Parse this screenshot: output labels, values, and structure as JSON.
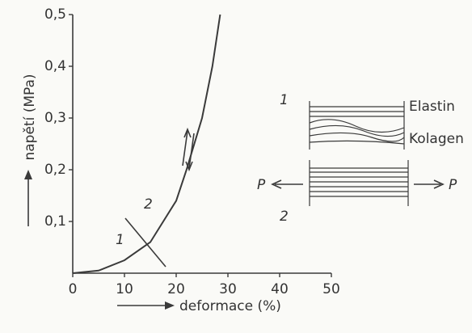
{
  "chart_data": {
    "type": "line",
    "xlabel": "deformace (%)",
    "ylabel": "napětí (MPa)",
    "x": [
      0,
      5,
      10,
      15,
      20,
      22,
      25,
      27,
      28.5
    ],
    "values": [
      0,
      0.005,
      0.025,
      0.06,
      0.14,
      0.2,
      0.3,
      0.4,
      0.5
    ],
    "color": "#3a3a3a",
    "xlim": [
      0,
      50
    ],
    "xticks": [
      0,
      10,
      20,
      30,
      40,
      50
    ],
    "ylim": [
      0,
      0.5
    ],
    "yticks": [
      {
        "value": 0.1,
        "label": "0,1"
      },
      {
        "value": 0.2,
        "label": "0,2"
      },
      {
        "value": 0.3,
        "label": "0,3"
      },
      {
        "value": 0.4,
        "label": "0,4"
      },
      {
        "value": 0.5,
        "label": "0,5"
      }
    ],
    "grid": false,
    "annotations": [
      "1",
      "2",
      "1",
      "Elastin",
      "Kolagen",
      "P",
      "P",
      "2"
    ]
  }
}
